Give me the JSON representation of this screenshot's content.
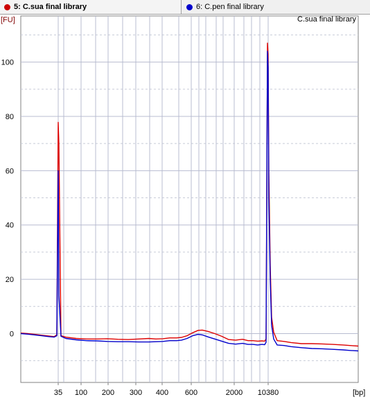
{
  "tabs": [
    {
      "label": "5: C.sua final library",
      "color": "#cc0000",
      "active": true
    },
    {
      "label": "6: C.pen final library",
      "color": "#0000cc",
      "active": false
    }
  ],
  "chart_data": {
    "type": "line",
    "title": "C.sua final library",
    "ylabel": "[FU]",
    "xlabel": "[bp]",
    "ylim": [
      -18,
      117
    ],
    "grid": true,
    "y_ticks": [
      0,
      20,
      40,
      60,
      80,
      100
    ],
    "x_ticks": [
      "35",
      "100",
      "200",
      "300",
      "400",
      "600",
      "2000",
      "10380"
    ],
    "series": [
      {
        "name": "5: C.sua final library",
        "color": "#dd0000",
        "points": [
          [
            "35",
            78
          ],
          [
            "10380",
            107
          ]
        ],
        "y": [
          0.2,
          0.0,
          -0.3,
          -0.6,
          -0.9,
          -1.1,
          -0.5,
          77.8,
          70,
          -0.8,
          -1.3,
          -1.8,
          -2.0,
          -2.0,
          -1.9,
          -2.1,
          -2.2,
          -2.0,
          -1.8,
          -2.0,
          -1.9,
          -1.6,
          -1.6,
          -1.4,
          -0.8,
          0.3,
          1.2,
          1.3,
          0.8,
          0.0,
          -1.0,
          -2.2,
          -2.4,
          -2.1,
          -2.6,
          -2.6,
          -2.8,
          -2.7,
          -2.8,
          -2.0,
          107,
          103,
          60,
          25,
          6,
          0.5,
          -2.6,
          -2.9,
          -3.3,
          -3.7,
          -3.7,
          -3.8,
          -4.0,
          -4.2,
          -4.4,
          -4.6
        ]
      },
      {
        "name": "6: C.pen final library",
        "color": "#0000cc",
        "points": [
          [
            "35",
            60
          ],
          [
            "10380",
            104
          ]
        ],
        "y": [
          0.0,
          -0.2,
          -0.5,
          -0.8,
          -1.1,
          -1.3,
          -0.8,
          60,
          14,
          -1.0,
          -1.8,
          -2.3,
          -2.6,
          -2.7,
          -2.9,
          -3.0,
          -3.0,
          -3.1,
          -3.1,
          -3.0,
          -2.9,
          -2.6,
          -2.6,
          -2.4,
          -1.8,
          -0.8,
          -0.3,
          -0.5,
          -1.2,
          -2.0,
          -2.8,
          -3.6,
          -3.9,
          -3.6,
          -4.0,
          -4.0,
          -4.2,
          -4.0,
          -4.1,
          -3.2,
          104,
          98,
          50,
          20,
          3,
          -2.0,
          -4.2,
          -4.4,
          -4.8,
          -5.2,
          -5.5,
          -5.6,
          -5.8,
          -6.0,
          -6.2,
          -6.4
        ]
      }
    ]
  }
}
